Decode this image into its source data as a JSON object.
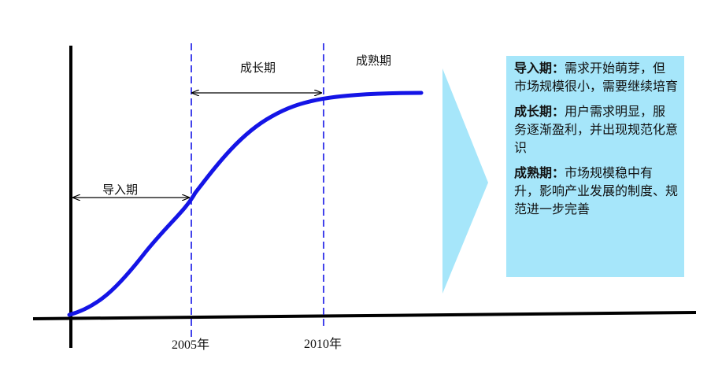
{
  "colors": {
    "curve": "#1414e6",
    "phase_line": "#1414e6",
    "axis": "#000000",
    "box": "#a6e6fa",
    "arrow": "#a6e6fa"
  },
  "stages": {
    "intro": "导入期",
    "growth": "成长期",
    "mature": "成熟期"
  },
  "years": {
    "y2005": "2005年",
    "y2010": "2010年"
  },
  "descriptions": [
    {
      "term": "导入期",
      "sep": "：",
      "text": "需求开始萌芽，但市场规模很小，需要继续培育"
    },
    {
      "term": "成长期",
      "sep": "：",
      "text": "用户需求明显，服务逐渐盈利，并出现规范化意识"
    },
    {
      "term": "成熟期",
      "sep": "：",
      "text": "市场规模稳中有升，影响产业发展的制度、规范进一步完善"
    }
  ]
}
